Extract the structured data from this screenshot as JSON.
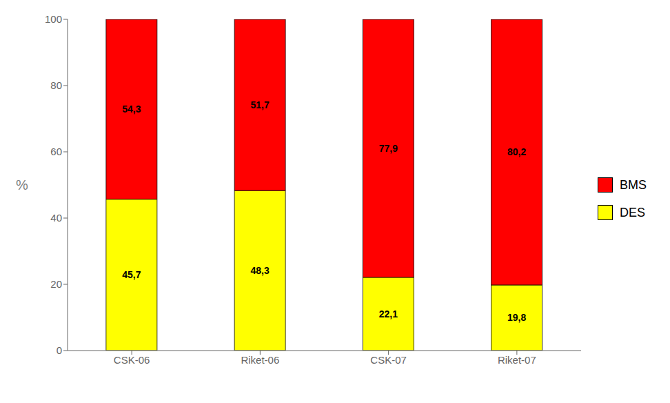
{
  "chart_data": {
    "type": "bar",
    "stacked": true,
    "ylabel": "%",
    "categories": [
      "CSK-06",
      "Riket-06",
      "CSK-07",
      "Riket-07"
    ],
    "series": [
      {
        "name": "DES",
        "color": "#FFFF00",
        "values": [
          45.7,
          48.3,
          22.1,
          19.8
        ],
        "value_labels": [
          "45,7",
          "48,3",
          "22,1",
          "19,8"
        ]
      },
      {
        "name": "BMS",
        "color": "#FF0000",
        "values": [
          54.3,
          51.7,
          77.9,
          80.2
        ],
        "value_labels": [
          "54,3",
          "51,7",
          "77,9",
          "80,2"
        ]
      }
    ],
    "ylim": [
      0,
      100
    ],
    "yticks": [
      0,
      20,
      40,
      60,
      80,
      100
    ],
    "grid": false,
    "legend": "right",
    "data_labels": true
  }
}
